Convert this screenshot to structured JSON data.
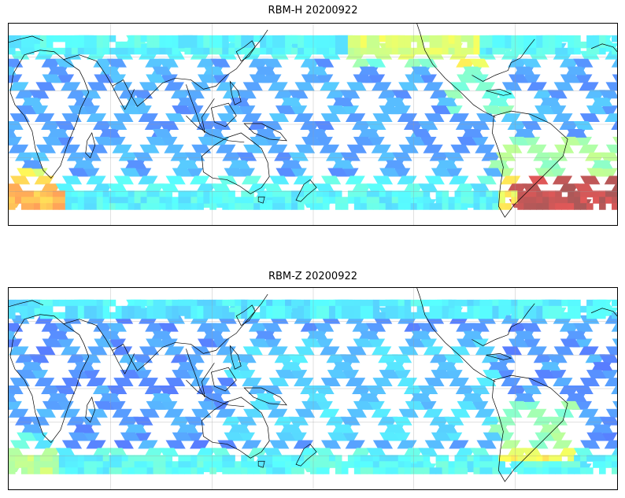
{
  "panels": [
    {
      "title": "RBM-H 20200922"
    },
    {
      "title": "RBM-Z 20200922"
    }
  ],
  "colormap": {
    "name": "jet",
    "alpha": 0.65
  },
  "lat_range": [
    -60,
    60
  ],
  "lon_range": [
    -180,
    180
  ],
  "gridlines": true
}
